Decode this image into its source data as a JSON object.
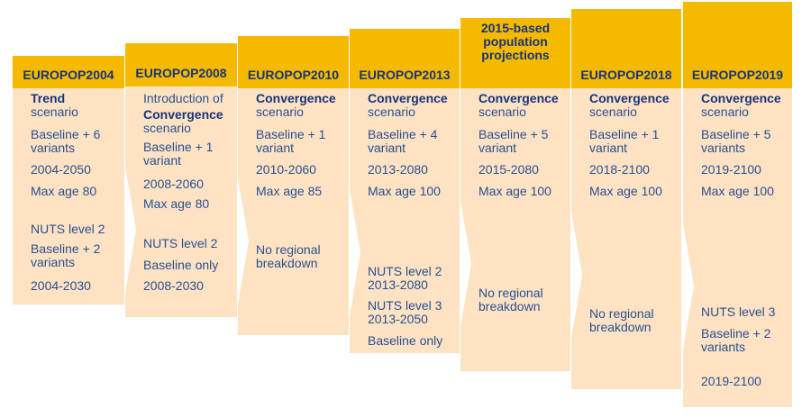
{
  "colors": {
    "header_bg": "#f5b900",
    "header_text": "#17347a",
    "body_bg": "#fde3c3",
    "body_text": "#2a4f91"
  },
  "columns": [
    {
      "header": [
        "EUROPOP2004"
      ],
      "items": [
        {
          "lines": [
            "Trend",
            "scenario"
          ],
          "bold_first": true
        },
        {
          "lines": [
            "Baseline + 6",
            "variants"
          ]
        },
        {
          "lines": [
            "2004-2050"
          ]
        },
        {
          "lines": [
            "Max age 80"
          ]
        },
        {
          "lines": [
            "NUTS level 2"
          ]
        },
        {
          "lines": [
            "Baseline + 2",
            "variants"
          ]
        },
        {
          "lines": [
            "2004-2030"
          ]
        }
      ]
    },
    {
      "header": [
        "EUROPOP2008"
      ],
      "items": [
        {
          "lines": [
            "Introduction of"
          ]
        },
        {
          "lines": [
            "Convergence",
            "scenario"
          ],
          "bold_first": true
        },
        {
          "lines": [
            "Baseline + 1",
            "variant"
          ]
        },
        {
          "lines": [
            "2008-2060"
          ]
        },
        {
          "lines": [
            "Max age 80"
          ]
        },
        {
          "lines": [
            "NUTS level 2"
          ]
        },
        {
          "lines": [
            "Baseline only"
          ]
        },
        {
          "lines": [
            "2008-2030"
          ]
        }
      ]
    },
    {
      "header": [
        "EUROPOP2010"
      ],
      "items": [
        {
          "lines": [
            "Convergence",
            "scenario"
          ],
          "bold_first": true
        },
        {
          "lines": [
            "Baseline + 1",
            "variant"
          ]
        },
        {
          "lines": [
            "2010-2060"
          ]
        },
        {
          "lines": [
            "Max age 85"
          ]
        },
        {
          "lines": [
            "No regional",
            "breakdown"
          ]
        }
      ]
    },
    {
      "header": [
        "EUROPOP2013"
      ],
      "items": [
        {
          "lines": [
            "Convergence",
            "scenario"
          ],
          "bold_first": true
        },
        {
          "lines": [
            "Baseline + 4",
            "variant"
          ]
        },
        {
          "lines": [
            "2013-2080"
          ]
        },
        {
          "lines": [
            "Max age 100"
          ]
        },
        {
          "lines": [
            "NUTS level 2",
            "2013-2080"
          ]
        },
        {
          "lines": [
            "NUTS level 3",
            "2013-2050"
          ]
        },
        {
          "lines": [
            "Baseline only"
          ]
        }
      ]
    },
    {
      "header": [
        "2015-based",
        "population",
        "projections"
      ],
      "items": [
        {
          "lines": [
            "Convergence",
            "scenario"
          ],
          "bold_first": true
        },
        {
          "lines": [
            "Baseline + 5",
            "variant"
          ]
        },
        {
          "lines": [
            "2015-2080"
          ]
        },
        {
          "lines": [
            "Max age 100"
          ]
        },
        {
          "lines": [
            "No regional",
            "breakdown"
          ]
        }
      ]
    },
    {
      "header": [
        "EUROPOP2018"
      ],
      "items": [
        {
          "lines": [
            "Convergence",
            "scenario"
          ],
          "bold_first": true
        },
        {
          "lines": [
            "Baseline + 1",
            "variant"
          ]
        },
        {
          "lines": [
            "2018-2100"
          ]
        },
        {
          "lines": [
            "Max age 100"
          ]
        },
        {
          "lines": [
            "No regional",
            "breakdown"
          ]
        }
      ]
    },
    {
      "header": [
        "EUROPOP2019"
      ],
      "items": [
        {
          "lines": [
            "Convergence",
            "scenario"
          ],
          "bold_first": true
        },
        {
          "lines": [
            "Baseline + 5",
            "variants"
          ]
        },
        {
          "lines": [
            "2019-2100"
          ]
        },
        {
          "lines": [
            "Max age 100"
          ]
        },
        {
          "lines": [
            "NUTS level 3"
          ]
        },
        {
          "lines": [
            "Baseline + 2",
            "variants"
          ]
        },
        {
          "lines": [
            "2019-2100"
          ]
        }
      ]
    }
  ]
}
